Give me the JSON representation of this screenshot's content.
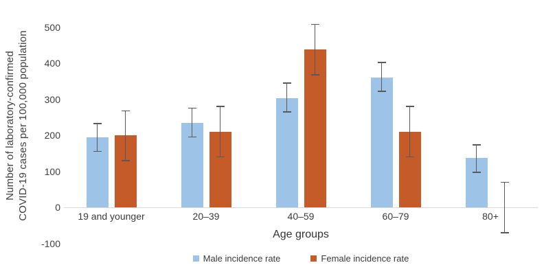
{
  "chart_data": {
    "type": "bar",
    "title": "",
    "xlabel": "Age groups",
    "ylabel": "Number of laboratory-confirmed COVID-19 cases per 100,000 population",
    "ylabel_lines": [
      "Number of laboratory-confirmed",
      "COVID-19 cases per 100,000 population"
    ],
    "categories": [
      "19 and younger",
      "20–39",
      "40–59",
      "60–79",
      "80+"
    ],
    "series": [
      {
        "name": "Male incidence rate",
        "color": "#9DC3E6",
        "values": [
          195,
          235,
          303,
          360,
          137
        ],
        "error_low": [
          155,
          195,
          265,
          322,
          97
        ],
        "error_high": [
          232,
          275,
          345,
          402,
          173
        ]
      },
      {
        "name": "Female incidence rate",
        "color": "#C45B28",
        "values": [
          200,
          210,
          438,
          210,
          0
        ],
        "error_low": [
          130,
          140,
          368,
          140,
          -70
        ],
        "error_high": [
          268,
          280,
          508,
          280,
          70
        ]
      }
    ],
    "yticks": [
      500,
      400,
      300,
      200,
      100,
      0,
      -100
    ],
    "ylim": [
      -100,
      500
    ],
    "grid": false,
    "legend_position": "bottom",
    "error_bar_color": "#595959",
    "axis_line_color": "#d9d9d9",
    "text_color": "#404040"
  }
}
